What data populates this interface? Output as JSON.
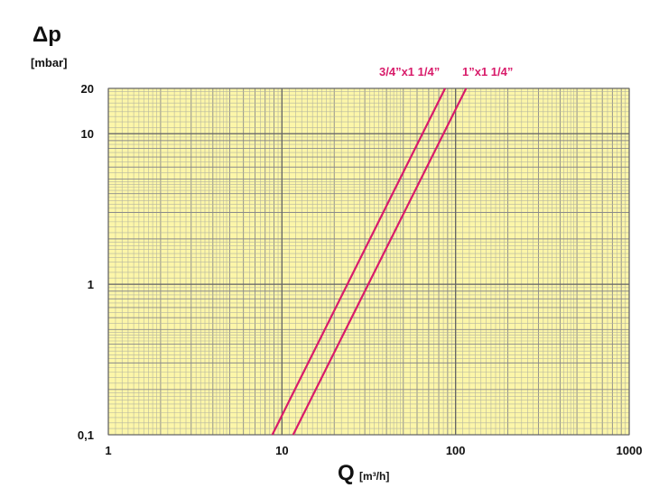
{
  "chart_data": {
    "type": "line",
    "title": "Δp",
    "y_unit": "[mbar]",
    "x_label": "Q",
    "x_unit": "[m³/h]",
    "log_x": true,
    "log_y": true,
    "grid": true,
    "background": "#fcf6a9",
    "xlim": [
      1,
      1000
    ],
    "ylim": [
      0.1,
      20
    ],
    "xticks": [
      1,
      10,
      100,
      1000
    ],
    "yticks": [
      {
        "value": 0.1,
        "label": "0,1"
      },
      1,
      10,
      20
    ],
    "series": [
      {
        "name": "3/4”x1 1/4”",
        "color": "#d81b6a",
        "x": [
          8.8,
          87
        ],
        "values": [
          0.1,
          20
        ]
      },
      {
        "name": "1”x1 1/4”",
        "color": "#d81b6a",
        "x": [
          11.6,
          115
        ],
        "values": [
          0.1,
          20
        ]
      }
    ]
  }
}
